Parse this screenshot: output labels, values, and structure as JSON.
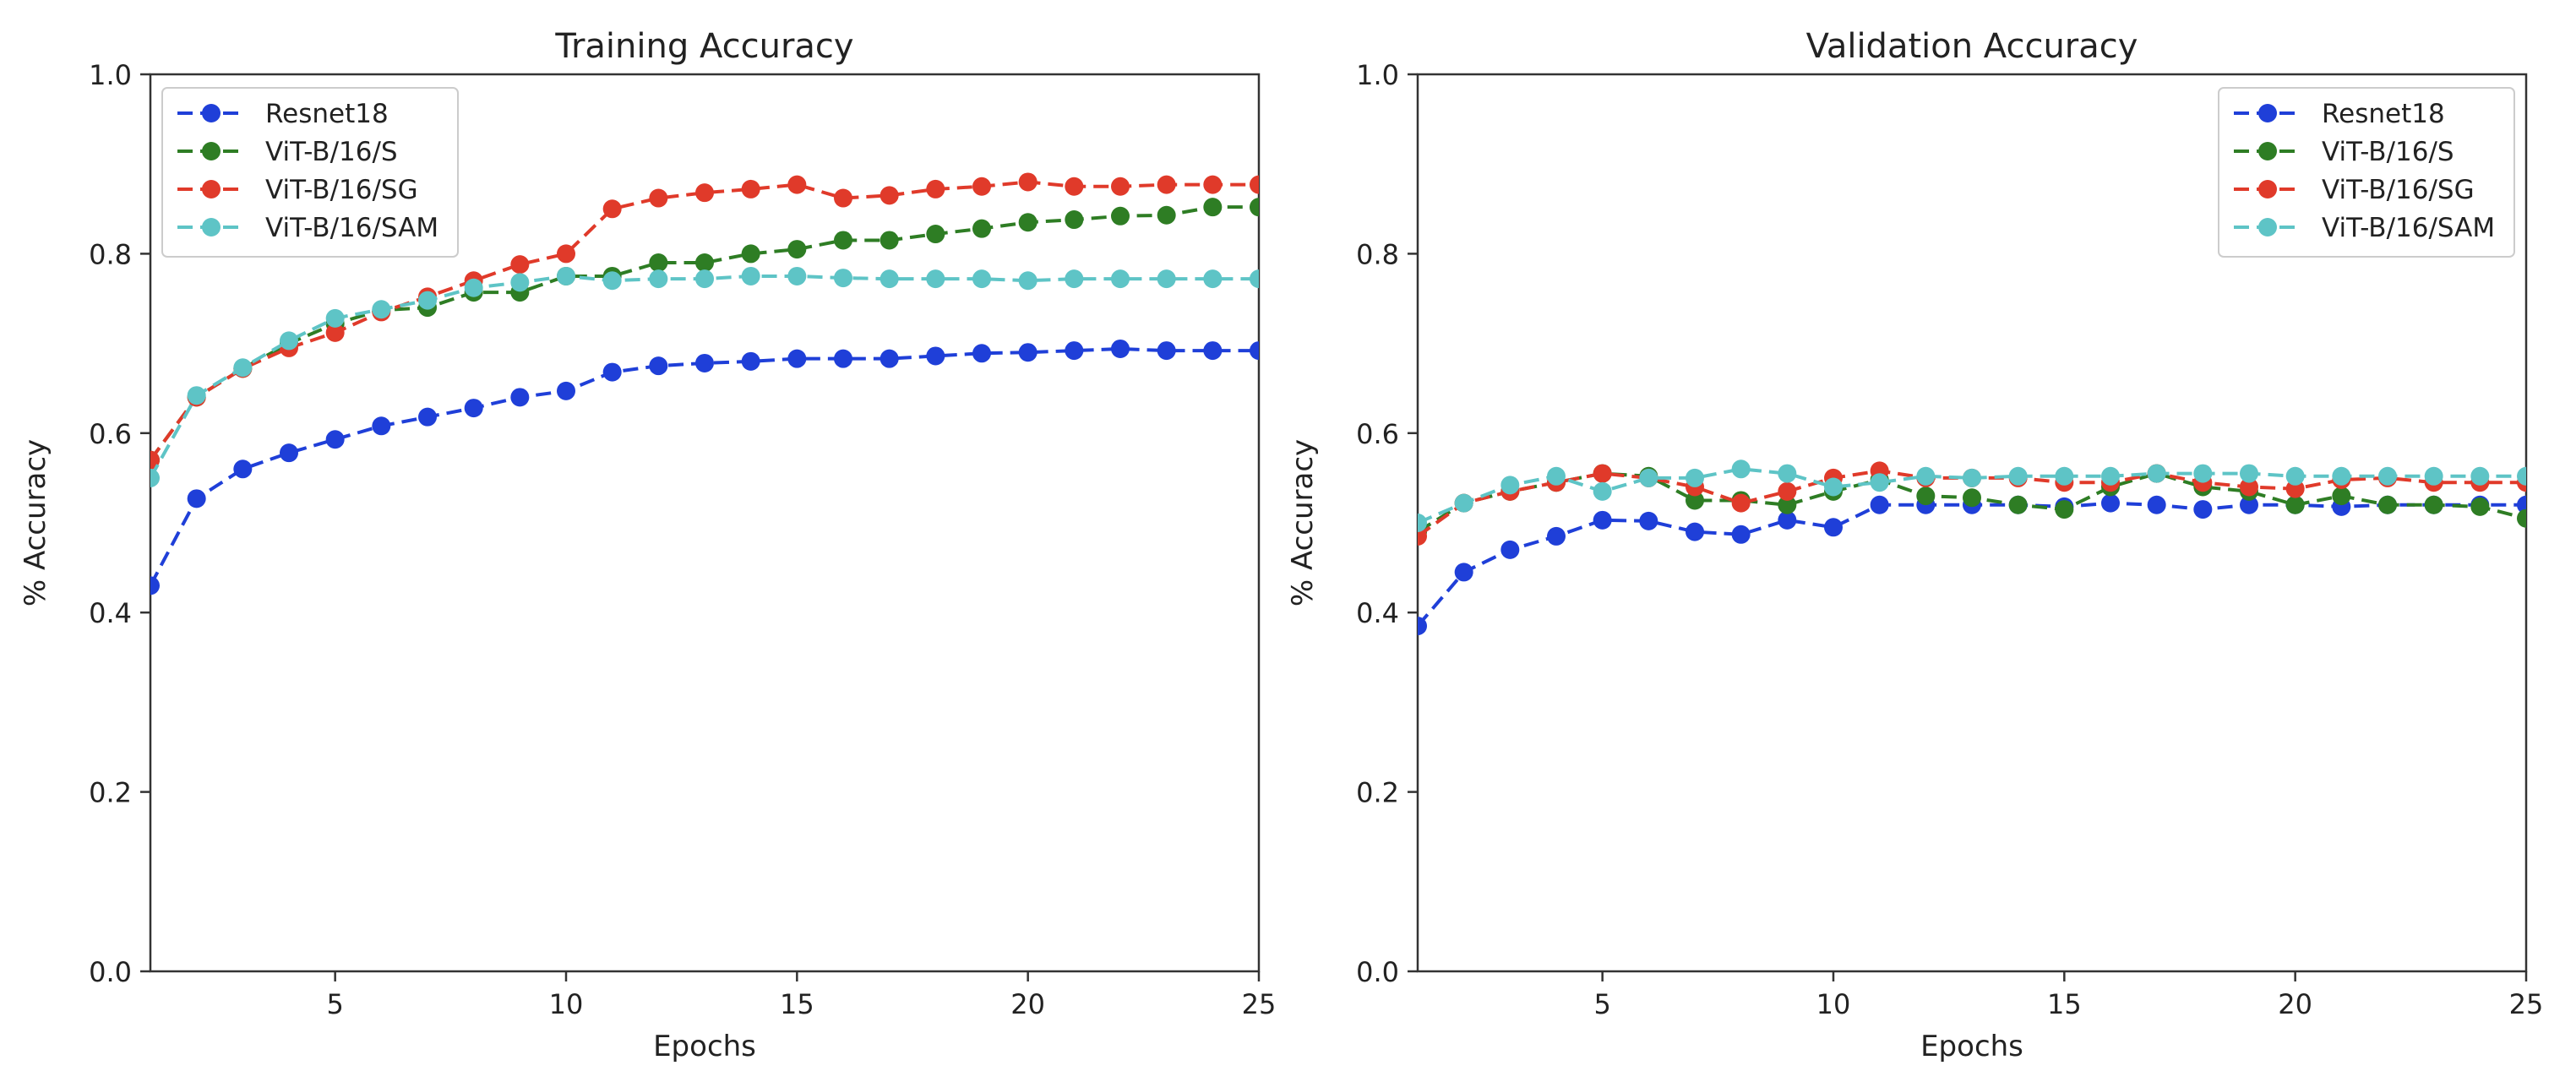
{
  "colors": {
    "Resnet18": "#1f3fd8",
    "ViT-B/16/S": "#2e7d24",
    "ViT-B/16/SG": "#e03a2a",
    "ViT-B/16/SAM": "#5ec4c6",
    "axes": "#333333"
  },
  "chart_data": [
    {
      "type": "line",
      "title": "Training Accuracy",
      "xlabel": "Epochs",
      "ylabel": "% Accuracy",
      "xlim": [
        1,
        25
      ],
      "ylim": [
        0.0,
        1.0
      ],
      "xticks": [
        5,
        10,
        15,
        20,
        25
      ],
      "yticks": [
        0.0,
        0.2,
        0.4,
        0.6,
        0.8,
        1.0
      ],
      "ytick_labels": [
        "0.0",
        "0.2",
        "0.4",
        "0.6",
        "0.8",
        "1.0"
      ],
      "legend_position": "top-left",
      "grid": false,
      "x": [
        1,
        2,
        3,
        4,
        5,
        6,
        7,
        8,
        9,
        10,
        11,
        12,
        13,
        14,
        15,
        16,
        17,
        18,
        19,
        20,
        21,
        22,
        23,
        24,
        25
      ],
      "series": [
        {
          "name": "Resnet18",
          "values": [
            0.43,
            0.527,
            0.56,
            0.578,
            0.593,
            0.608,
            0.618,
            0.628,
            0.64,
            0.647,
            0.668,
            0.675,
            0.678,
            0.68,
            0.683,
            0.683,
            0.683,
            0.686,
            0.689,
            0.69,
            0.692,
            0.694,
            0.692,
            0.692,
            0.692
          ]
        },
        {
          "name": "ViT-B/16/S",
          "values": [
            0.57,
            0.64,
            0.672,
            0.7,
            0.722,
            0.737,
            0.74,
            0.757,
            0.757,
            0.775,
            0.775,
            0.79,
            0.79,
            0.8,
            0.805,
            0.815,
            0.815,
            0.822,
            0.828,
            0.835,
            0.838,
            0.842,
            0.843,
            0.852,
            0.852
          ]
        },
        {
          "name": "ViT-B/16/SG",
          "values": [
            0.57,
            0.64,
            0.672,
            0.695,
            0.712,
            0.735,
            0.752,
            0.77,
            0.788,
            0.8,
            0.85,
            0.862,
            0.868,
            0.872,
            0.877,
            0.862,
            0.865,
            0.872,
            0.875,
            0.88,
            0.875,
            0.875,
            0.877,
            0.877,
            0.877
          ]
        },
        {
          "name": "ViT-B/16/SAM",
          "values": [
            0.55,
            0.642,
            0.673,
            0.703,
            0.728,
            0.738,
            0.748,
            0.762,
            0.768,
            0.775,
            0.77,
            0.772,
            0.772,
            0.775,
            0.775,
            0.773,
            0.772,
            0.772,
            0.772,
            0.77,
            0.772,
            0.772,
            0.772,
            0.772,
            0.772
          ]
        }
      ]
    },
    {
      "type": "line",
      "title": "Validation Accuracy",
      "xlabel": "Epochs",
      "ylabel": "% Accuracy",
      "xlim": [
        1,
        25
      ],
      "ylim": [
        0.0,
        1.0
      ],
      "xticks": [
        5,
        10,
        15,
        20,
        25
      ],
      "yticks": [
        0.0,
        0.2,
        0.4,
        0.6,
        0.8,
        1.0
      ],
      "ytick_labels": [
        "0.0",
        "0.2",
        "0.4",
        "0.6",
        "0.8",
        "1.0"
      ],
      "legend_position": "top-right",
      "grid": false,
      "x": [
        1,
        2,
        3,
        4,
        5,
        6,
        7,
        8,
        9,
        10,
        11,
        12,
        13,
        14,
        15,
        16,
        17,
        18,
        19,
        20,
        21,
        22,
        23,
        24,
        25
      ],
      "series": [
        {
          "name": "Resnet18",
          "values": [
            0.385,
            0.445,
            0.47,
            0.485,
            0.503,
            0.502,
            0.49,
            0.487,
            0.503,
            0.495,
            0.52,
            0.52,
            0.52,
            0.52,
            0.518,
            0.522,
            0.52,
            0.515,
            0.52,
            0.52,
            0.518,
            0.52,
            0.52,
            0.52,
            0.52
          ]
        },
        {
          "name": "ViT-B/16/S",
          "values": [
            0.49,
            0.522,
            0.535,
            0.545,
            0.555,
            0.552,
            0.525,
            0.525,
            0.52,
            0.535,
            0.548,
            0.53,
            0.528,
            0.52,
            0.515,
            0.54,
            0.555,
            0.54,
            0.535,
            0.52,
            0.53,
            0.52,
            0.52,
            0.518,
            0.505
          ]
        },
        {
          "name": "ViT-B/16/SG",
          "values": [
            0.485,
            0.522,
            0.535,
            0.545,
            0.555,
            0.55,
            0.54,
            0.522,
            0.535,
            0.55,
            0.558,
            0.55,
            0.55,
            0.55,
            0.545,
            0.545,
            0.555,
            0.545,
            0.54,
            0.538,
            0.548,
            0.55,
            0.545,
            0.545,
            0.545
          ]
        },
        {
          "name": "ViT-B/16/SAM",
          "values": [
            0.5,
            0.522,
            0.542,
            0.552,
            0.535,
            0.55,
            0.55,
            0.56,
            0.555,
            0.54,
            0.545,
            0.552,
            0.55,
            0.552,
            0.552,
            0.552,
            0.555,
            0.555,
            0.555,
            0.552,
            0.552,
            0.552,
            0.552,
            0.552,
            0.552
          ]
        }
      ]
    }
  ]
}
